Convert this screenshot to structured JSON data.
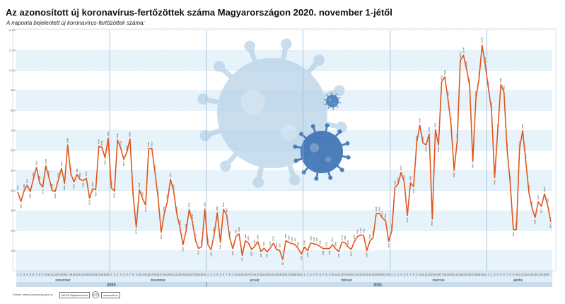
{
  "title": "Az azonosított új koronavírus-fertőzöttek száma Magyarországon 2020. november 1-jétől",
  "subtitle": "A naponta bejelentett új koronavírus-fertőzöttek száma:",
  "footer": {
    "source": "Forrás: www.koronavirus.gov.hu",
    "logo1": "MTVA Sajtóarchívum",
    "logo2": "MTI",
    "logo3": "www.mti.hu"
  },
  "colors": {
    "line": "#e0561c",
    "band": "#e7f3fb",
    "axis_band": "#d6e6f2",
    "year_band": "#c8dcec",
    "divider": "#98b8d4",
    "virus": "#b8d2e8",
    "virus_dark": "#3f73b6"
  },
  "chart_data": {
    "type": "line",
    "title": "Az azonosított új koronavírus-fertőzöttek száma Magyarországon 2020. november 1-jétől",
    "subtitle": "A naponta bejelentett új koronavírus-fertőzöttek száma:",
    "ylim": [
      0,
      12000
    ],
    "yticks": [
      1000,
      2000,
      3000,
      4000,
      5000,
      6000,
      7000,
      8000,
      9000,
      10000,
      11000,
      12000
    ],
    "grid": true,
    "months": [
      {
        "name": "november",
        "days": 30
      },
      {
        "name": "december",
        "days": 31
      },
      {
        "name": "január",
        "days": 31
      },
      {
        "name": "február",
        "days": 28
      },
      {
        "name": "március",
        "days": 31
      },
      {
        "name": "április",
        "days": 20
      }
    ],
    "years": [
      {
        "label": "2020",
        "start_day": 0,
        "days": 61
      },
      {
        "label": "2021",
        "start_day": 61,
        "days": 110
      }
    ],
    "series": [
      {
        "values": [
          3923,
          3456,
          3989,
          4271,
          3955,
          4592,
          5162,
          4385,
          4172,
          5240,
          4651,
          4006,
          3965,
          4539,
          5112,
          4366,
          6280,
          4846,
          4438,
          4807,
          4552,
          4499,
          4616,
          3624,
          4092,
          4054,
          6218,
          6158,
          5637,
          6610,
          4144,
          3979,
          6533,
          6136,
          5564,
          5922,
          6580,
          3767,
          2173,
          4048,
          3620,
          3278,
          6090,
          6117,
          4927,
          3657,
          1923,
          2850,
          3466,
          4564,
          3976,
          2850,
          2191,
          1298,
          1999,
          3062,
          2470,
          1526,
          1114,
          1203,
          3081,
          1297,
          1051,
          1803,
          2897,
          1416,
          3066,
          2800,
          1626,
          1097,
          1715,
          1839,
          766,
          1493,
          1385,
          1063,
          1213,
          1457,
          965,
          1123,
          945,
          1137,
          1375,
          1062,
          1031,
          563,
          1505,
          1408,
          1357,
          1303,
          1099,
          838,
          1190,
          1005,
          1385,
          1346,
          1305,
          1211,
          1104,
          1113,
          1106,
          1304,
          1099,
          966,
          1431,
          1405,
          1186,
          1072,
          1463,
          1709,
          1791,
          1750,
          1009,
          1489,
          1652,
          2844,
          2876,
          2631,
          2500,
          1476,
          1984,
          4158,
          4331,
          4917,
          4435,
          2764,
          4385,
          4202,
          6385,
          7269,
          6387,
          6278,
          6830,
          2578,
          7051,
          6269,
          9422,
          9681,
          8617,
          7322,
          5018,
          6485,
          10512,
          10760,
          10059,
          9219,
          5464,
          8620,
          9610,
          11265,
          10265,
          9110,
          8061,
          4643,
          6993,
          9292,
          8925,
          6055,
          4385,
          2044,
          2066,
          6114,
          6992,
          5473,
          3930,
          3128,
          2659,
          3437,
          3217,
          3839,
          3287,
          2463
        ]
      }
    ]
  }
}
